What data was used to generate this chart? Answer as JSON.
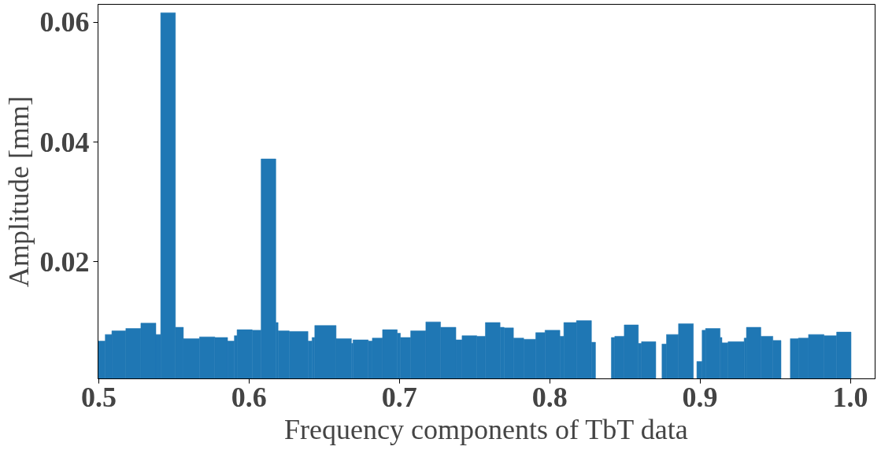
{
  "chart_data": {
    "type": "histogram",
    "xlabel": "Frequency components of TbT data",
    "ylabel": "Amplitude [mm]",
    "color": "#1f77b4",
    "bins": [
      0.4995,
      0.5043,
      0.5087,
      0.518,
      0.528,
      0.538,
      0.5412,
      0.551,
      0.5563,
      0.567,
      0.5772,
      0.5857,
      0.5902,
      0.592,
      0.6021,
      0.608,
      0.6178,
      0.6193,
      0.6267,
      0.6392,
      0.6419,
      0.6437,
      0.6579,
      0.6681,
      0.6691,
      0.6793,
      0.682,
      0.6888,
      0.6986,
      0.7007,
      0.7075,
      0.7176,
      0.7274,
      0.7376,
      0.7417,
      0.7515,
      0.7572,
      0.767,
      0.7697,
      0.7759,
      0.7827,
      0.7907,
      0.7969,
      0.8068,
      0.8094,
      0.8178,
      0.8278,
      0.8305,
      0.841,
      0.8433,
      0.8496,
      0.859,
      0.8611,
      0.8706,
      0.8747,
      0.8777,
      0.8857,
      0.8956,
      0.8979,
      0.9014,
      0.9037,
      0.9134,
      0.9146,
      0.9187,
      0.9294,
      0.9309,
      0.9405,
      0.9485,
      0.9539,
      0.9601,
      0.9655,
      0.9722,
      0.9825,
      0.9909,
      1.0005
    ],
    "values": [
      0.0068,
      0.0079,
      0.0085,
      0.0089,
      0.0098,
      0.0079,
      0.0616,
      0.0091,
      0.0072,
      0.0075,
      0.0074,
      0.0068,
      0.0077,
      0.0087,
      0.0086,
      0.0372,
      0.0099,
      0.0085,
      0.0084,
      0.0068,
      0.0074,
      0.0094,
      0.0072,
      0.0064,
      0.007,
      0.0068,
      0.0073,
      0.0087,
      0.0081,
      0.0074,
      0.0085,
      0.01,
      0.0091,
      0.007,
      0.0077,
      0.0076,
      0.0099,
      0.0091,
      0.009,
      0.0073,
      0.0071,
      0.0082,
      0.0086,
      0.0076,
      0.0099,
      0.0102,
      0.0066,
      null,
      0.0074,
      0.0076,
      0.0095,
      0.0064,
      0.0067,
      null,
      0.0063,
      0.0079,
      0.0097,
      null,
      0.0034,
      0.0086,
      0.0089,
      0.0074,
      0.0065,
      0.0067,
      0.0073,
      0.0091,
      0.0076,
      0.0069,
      null,
      0.0072,
      0.0073,
      0.0079,
      0.0077,
      0.0083
    ],
    "xlim": [
      0.4995,
      1.0165
    ],
    "ylim": [
      0.0005,
      0.063
    ],
    "xticks": [
      0.5,
      0.6,
      0.7,
      0.8,
      0.9,
      {
        "value": 1.0,
        "label": "1.0"
      }
    ],
    "yticks": [
      0.02,
      0.04,
      0.06
    ],
    "grid": false
  }
}
